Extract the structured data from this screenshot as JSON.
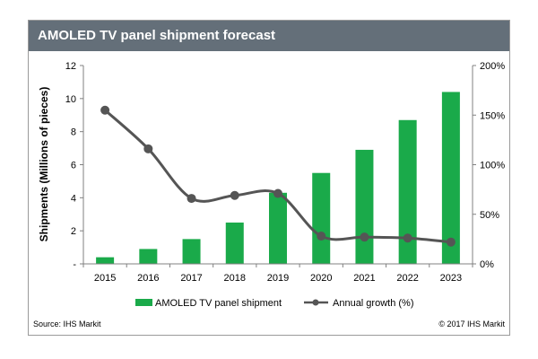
{
  "header": {
    "title": "AMOLED TV panel shipment forecast"
  },
  "footer": {
    "source": "Source: IHS Markit",
    "copyright": "© 2017 IHS Markit"
  },
  "colors": {
    "bar": "#1aaa4a",
    "line": "#555555",
    "header_bg": "#646f79"
  },
  "chart_data": {
    "type": "bar",
    "categories": [
      "2015",
      "2016",
      "2017",
      "2018",
      "2019",
      "2020",
      "2021",
      "2022",
      "2023"
    ],
    "ylabel": "Shipments (Millions of pieces)",
    "ylim": [
      0,
      12
    ],
    "yticks": [
      "-",
      "2",
      "4",
      "6",
      "8",
      "10",
      "12"
    ],
    "y2lim": [
      0,
      200
    ],
    "y2ticks": [
      "0%",
      "50%",
      "100%",
      "150%",
      "200%"
    ],
    "legend_position": "bottom",
    "series": [
      {
        "name": "AMOLED TV panel shipment",
        "type": "bar",
        "axis": "left",
        "values": [
          0.4,
          0.9,
          1.5,
          2.5,
          4.3,
          5.5,
          6.9,
          8.7,
          10.4
        ]
      },
      {
        "name": "Annual growth (%)",
        "type": "line",
        "axis": "right",
        "values": [
          155,
          116,
          66,
          69,
          71,
          28,
          27,
          26,
          22
        ]
      }
    ]
  }
}
